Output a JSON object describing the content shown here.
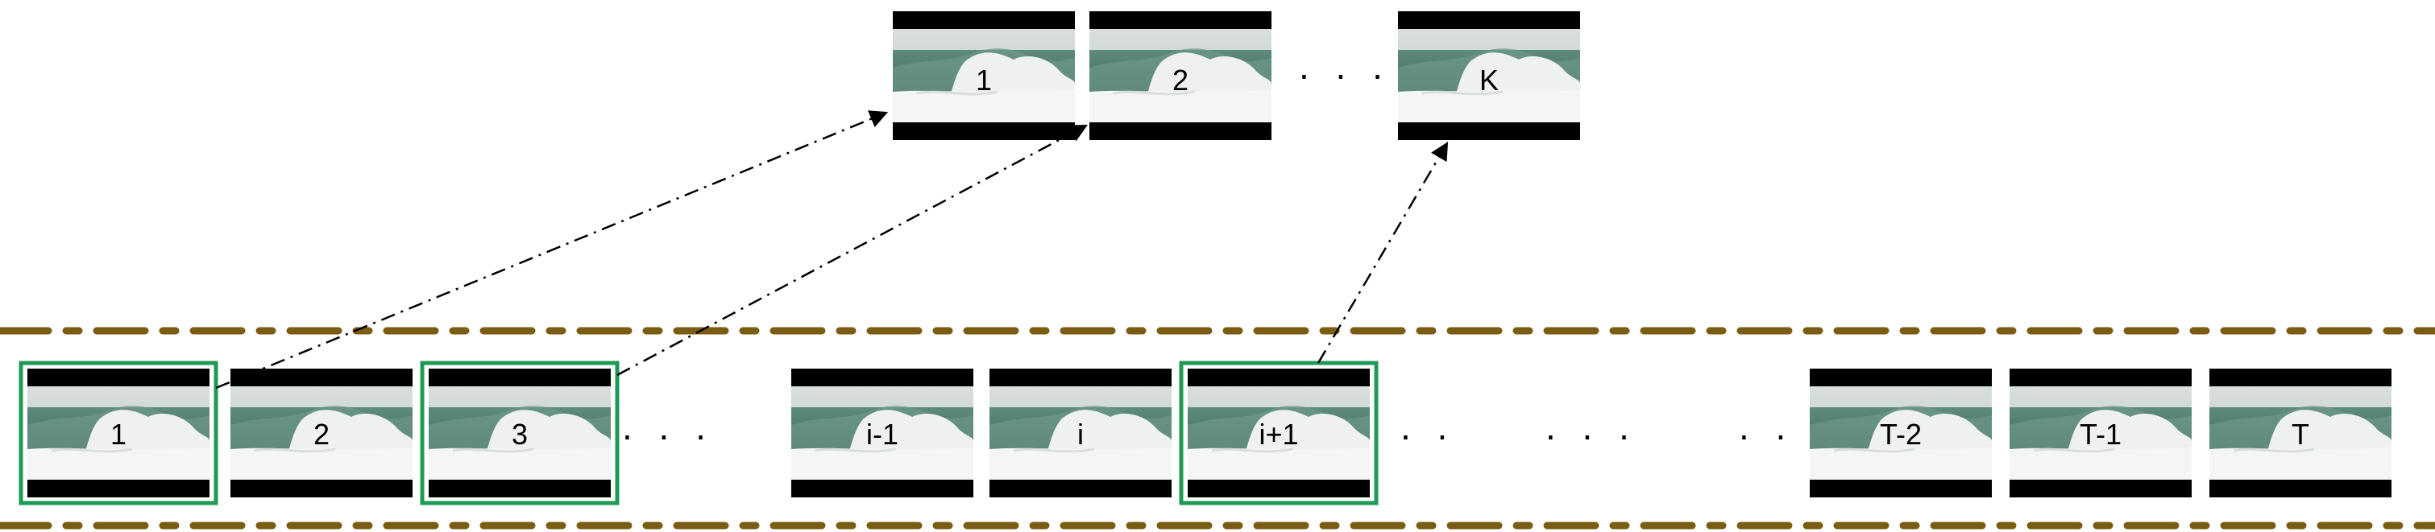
{
  "diagram": {
    "colors": {
      "band": "#7a5c12",
      "highlight": "#1f9a55",
      "arrow": "#000000",
      "film_bar": "#000000",
      "wave_sky": "#c9d3cd",
      "wave_sea": "#4f7a6c",
      "wave_foam": "#f2f4f3"
    },
    "top_row": {
      "frames": [
        {
          "label": "1",
          "icon": "wave-frame-icon"
        },
        {
          "label": "2",
          "icon": "wave-frame-icon"
        },
        {
          "label": "K",
          "icon": "wave-frame-icon"
        }
      ],
      "ellipsis": ". . ."
    },
    "bottom_row": {
      "frames": [
        {
          "label": "1",
          "selected": true
        },
        {
          "label": "2",
          "selected": false
        },
        {
          "label": "3",
          "selected": true
        },
        {
          "label": "i-1",
          "selected": false
        },
        {
          "label": "i",
          "selected": false
        },
        {
          "label": "i+1",
          "selected": true
        },
        {
          "label": "T-2",
          "selected": false
        },
        {
          "label": "T-1",
          "selected": false
        },
        {
          "label": "T",
          "selected": false
        }
      ],
      "ellipses": [
        ". . .",
        ". .",
        ". . .",
        ". . ."
      ]
    },
    "mappings": [
      {
        "from": "1",
        "to": "1"
      },
      {
        "from": "3",
        "to": "2"
      },
      {
        "from": "i+1",
        "to": "K"
      }
    ]
  }
}
